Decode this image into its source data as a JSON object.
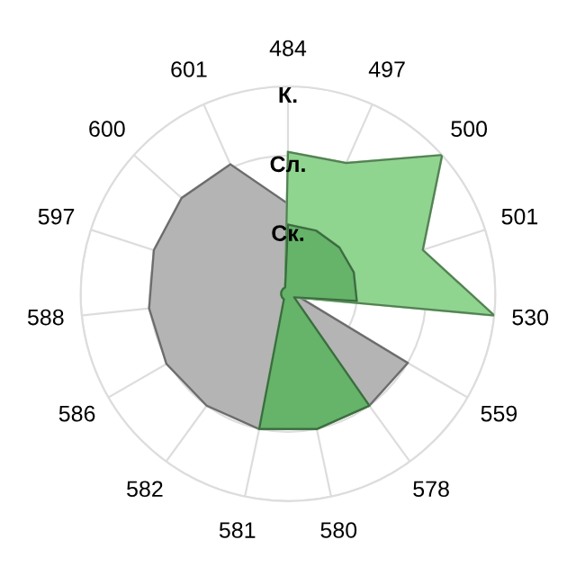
{
  "chart_data": {
    "type": "radar",
    "categories": [
      "484",
      "497",
      "500",
      "501",
      "530",
      "559",
      "578",
      "580",
      "581",
      "582",
      "586",
      "588",
      "597",
      "600",
      "601"
    ],
    "ylim": [
      0,
      3
    ],
    "yticks": [
      {
        "value": 1,
        "label": "Ск."
      },
      {
        "value": 2,
        "label": "Сл."
      },
      {
        "value": 3,
        "label": "К."
      }
    ],
    "grid": true,
    "series": [
      {
        "color": "#b4b4b4",
        "values": [
          1.3,
          0.1,
          0.1,
          0.1,
          0.1,
          2.0,
          2.0,
          2.0,
          2.0,
          2.0,
          2.03,
          2.02,
          2.04,
          2.07,
          2.05
        ]
      },
      {
        "color": "#8fd48f",
        "values": [
          2.05,
          2.07,
          3.0,
          2.05,
          3.0,
          0.1,
          0.1,
          0.1,
          0.1,
          0.1,
          0.1,
          0.1,
          0.1,
          0.1,
          0.1
        ]
      },
      {
        "color": "#66b36a",
        "values": [
          1.0,
          1.0,
          1.0,
          1.0,
          1.0,
          0.1,
          2.0,
          2.0,
          2.0,
          0.1,
          0.1,
          0.1,
          0.1,
          0.1,
          0.1
        ]
      }
    ]
  }
}
